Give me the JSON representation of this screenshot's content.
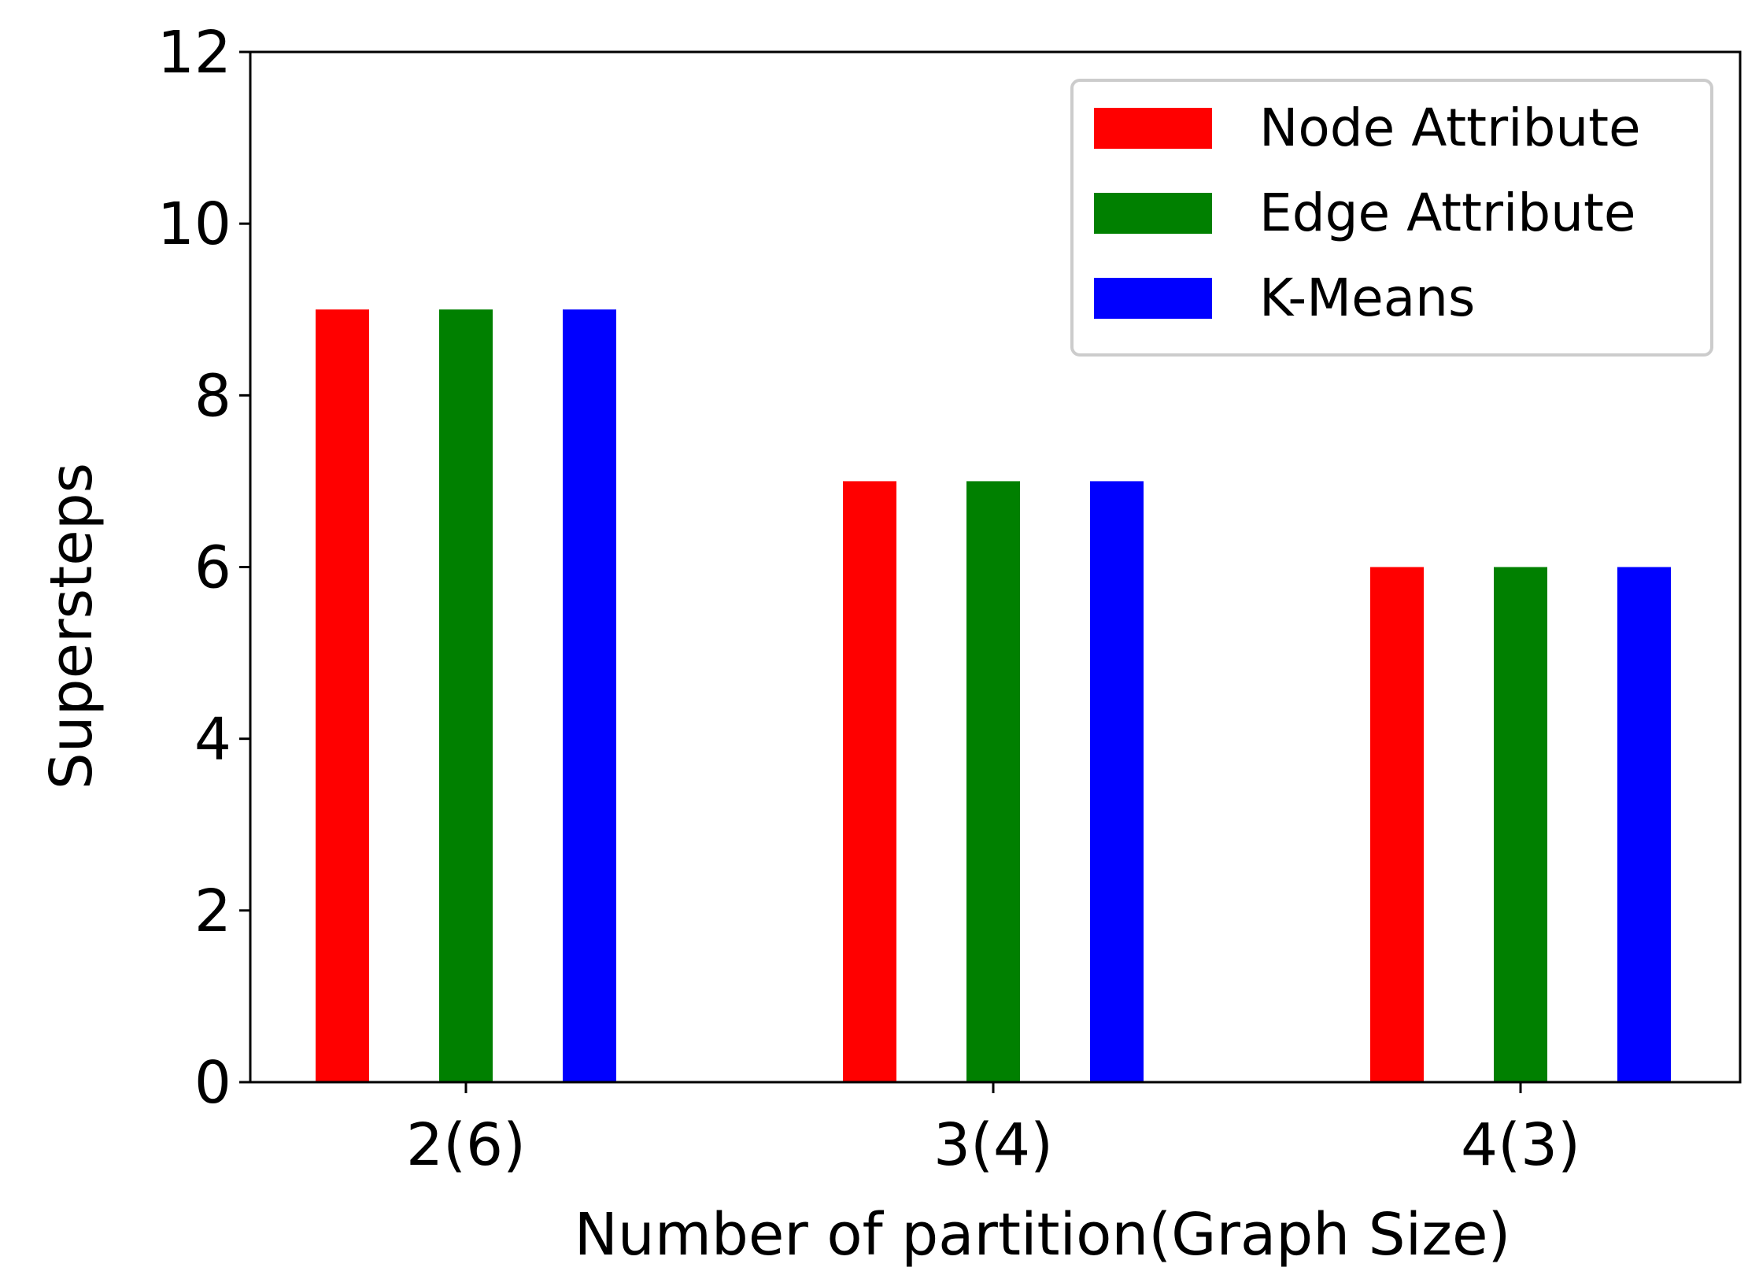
{
  "chart_data": {
    "type": "bar",
    "title": "",
    "xlabel": "Number of partition(Graph Size)",
    "ylabel": "Supersteps",
    "categories": [
      "2(6)",
      "3(4)",
      "4(3)"
    ],
    "series": [
      {
        "name": "Node Attribute",
        "color": "#ff0000",
        "values": [
          9,
          7,
          6
        ]
      },
      {
        "name": "Edge Attribute",
        "color": "#008000",
        "values": [
          9,
          7,
          6
        ]
      },
      {
        "name": "K-Means",
        "color": "#0000ff",
        "values": [
          9,
          7,
          6
        ]
      }
    ],
    "ylim": [
      0,
      12
    ],
    "yticks": [
      0,
      2,
      4,
      6,
      8,
      10,
      12
    ],
    "ytick_labels": [
      "0",
      "2",
      "4",
      "6",
      "8",
      "10",
      "12"
    ],
    "grid": false,
    "legend_position": "top-right"
  }
}
